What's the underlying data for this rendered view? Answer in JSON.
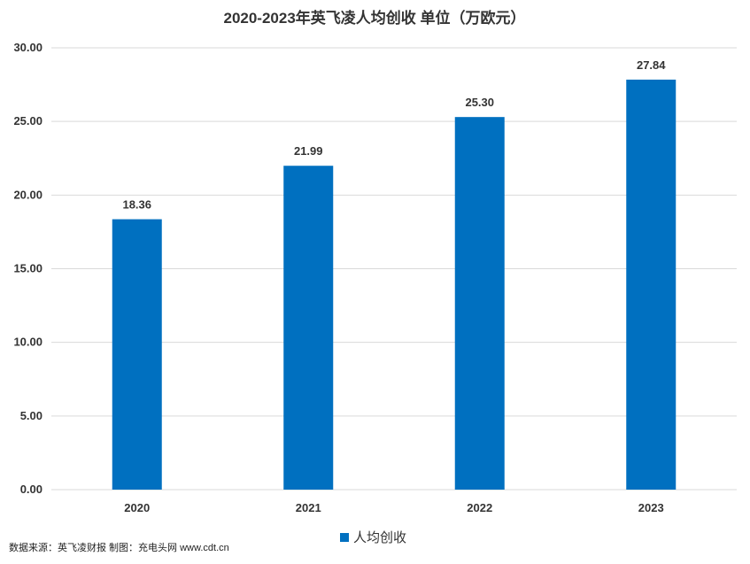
{
  "chart_data": {
    "type": "bar",
    "title": "2020-2023年英飞凌人均创收  单位（万欧元）",
    "categories": [
      "2020",
      "2021",
      "2022",
      "2023"
    ],
    "series": [
      {
        "name": "人均创收",
        "values": [
          18.36,
          21.99,
          25.3,
          27.84
        ],
        "color": "#0070C0"
      }
    ],
    "data_labels": [
      "18.36",
      "21.99",
      "25.30",
      "27.84"
    ],
    "y_ticks": [
      "0.00",
      "5.00",
      "10.00",
      "15.00",
      "20.00",
      "25.00",
      "30.00"
    ],
    "ylim": [
      0,
      30
    ],
    "xlabel": "",
    "ylabel": "",
    "grid": true,
    "legend_position": "bottom"
  },
  "source_note": "数据来源：英飞凌财报 制图：充电头网 www.cdt.cn",
  "colors": {
    "bar": "#0070C0",
    "grid": "#D9D9D9",
    "text": "#333333"
  }
}
